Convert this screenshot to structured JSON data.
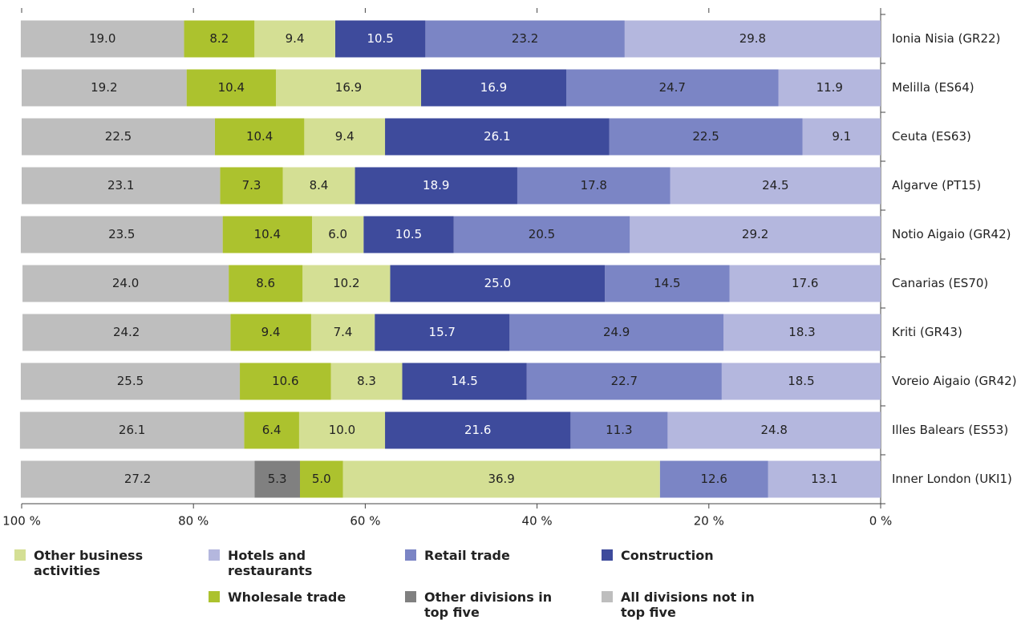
{
  "chart_data": {
    "type": "stacked-bar-horizontal",
    "categories": [
      "Ionia Nisia (GR22)",
      "Melilla (ES64)",
      "Ceuta (ES63)",
      "Algarve (PT15)",
      "Notio Aigaio (GR42)",
      "Canarias (ES70)",
      "Kriti (GR43)",
      "Voreio Aigaio (GR42)",
      "Illes Balears (ES53)",
      "Inner London (UKI1)"
    ],
    "series": [
      {
        "name": "Hotels and restaurants",
        "color": "#b4b7de",
        "values": [
          29.8,
          11.9,
          9.1,
          24.5,
          29.2,
          17.6,
          18.3,
          18.5,
          24.8,
          13.1
        ],
        "value_labels": [
          "29.8",
          "11.9",
          "9.1",
          "24.5",
          "29.2",
          "17.6",
          "18.3",
          "18.5",
          "24.8",
          "13.1"
        ]
      },
      {
        "name": "Retail trade",
        "color": "#7b85c5",
        "values": [
          23.2,
          24.7,
          22.5,
          17.8,
          20.5,
          14.5,
          24.9,
          22.7,
          11.3,
          12.6
        ],
        "value_labels": [
          "23.2",
          "24.7",
          "22.5",
          "17.8",
          "20.5",
          "14.5",
          "24.9",
          "22.7",
          "11.3",
          "12.6"
        ]
      },
      {
        "name": "Construction",
        "color": "#3e4b9c",
        "values": [
          10.5,
          16.9,
          26.1,
          18.9,
          10.5,
          25.0,
          15.7,
          14.5,
          21.6,
          null
        ],
        "value_labels": [
          "10.5",
          "16.9",
          "26.1",
          "18.9",
          "10.5",
          "25.0",
          "15.7",
          "14.5",
          "21.6",
          null
        ]
      },
      {
        "name": "Other business activities",
        "color": "#d4df94",
        "values": [
          9.4,
          16.9,
          9.4,
          8.4,
          6.0,
          10.2,
          7.4,
          8.3,
          10.0,
          36.9
        ],
        "value_labels": [
          "9.4",
          "16.9",
          "9.4",
          "8.4",
          "6.0",
          "10.2",
          "7.4",
          "8.3",
          "10.0",
          "36.9"
        ]
      },
      {
        "name": "Wholesale trade",
        "color": "#acc22e",
        "values": [
          8.2,
          10.4,
          10.4,
          7.3,
          10.4,
          8.6,
          9.4,
          10.6,
          6.4,
          5.0
        ],
        "value_labels": [
          "8.2",
          "10.4",
          "10.4",
          "7.3",
          "10.4",
          "8.6",
          "9.4",
          "10.6",
          "6.4",
          "5.0"
        ]
      },
      {
        "name": "Other divisions in top five",
        "color": "#808080",
        "values": [
          null,
          null,
          null,
          null,
          null,
          null,
          null,
          null,
          null,
          5.3
        ],
        "value_labels": [
          null,
          null,
          null,
          null,
          null,
          null,
          null,
          null,
          null,
          "5.3"
        ]
      },
      {
        "name": "All divisions not in top five",
        "color": "#bebebe",
        "values": [
          19.0,
          19.2,
          22.5,
          23.1,
          23.5,
          24.0,
          24.2,
          25.5,
          26.1,
          27.2
        ],
        "value_labels": [
          "19.0",
          "19.2",
          "22.5",
          "23.1",
          "23.5",
          "24.0",
          "24.2",
          "25.5",
          "26.1",
          "27.2"
        ]
      }
    ],
    "xlim": [
      100,
      0
    ],
    "xticks": [
      {
        "value": 100,
        "label": "100 %"
      },
      {
        "value": 80,
        "label": "80 %"
      },
      {
        "value": 60,
        "label": "60 %"
      },
      {
        "value": 40,
        "label": "40 %"
      },
      {
        "value": 20,
        "label": "20 %"
      },
      {
        "value": 0,
        "label": "0 %"
      }
    ],
    "legend": "bottom"
  }
}
